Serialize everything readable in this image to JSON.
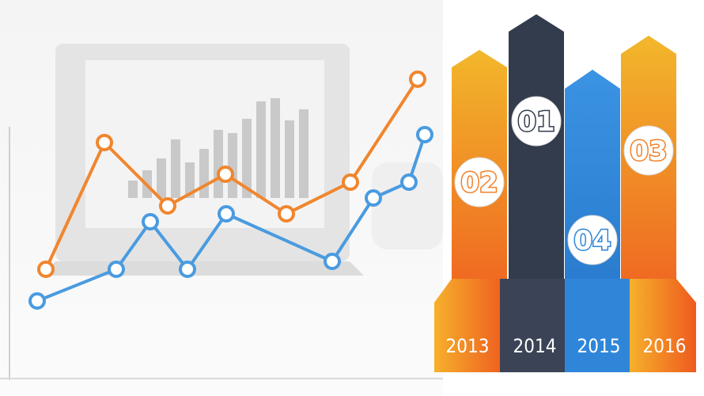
{
  "colors": {
    "orange_line": "#f0862e",
    "blue_line": "#4a9be0",
    "arrow_yellow": "#f2b72b",
    "arrow_orange": "#f0812a",
    "arrow_navy": "#333c4d",
    "arrow_blue": "#2f86d9"
  },
  "chart_data": [
    {
      "type": "line",
      "series": [
        {
          "name": "",
          "values": [
            2.0,
            3.6,
            2.8,
            3.2,
            2.7,
            3.1,
            4.4
          ],
          "color": "#f0862e"
        },
        {
          "name": "",
          "values": [
            1.6,
            2.0,
            2.6,
            2.0,
            2.7,
            2.1,
            2.9,
            3.1,
            3.7
          ],
          "color": "#4a9be0"
        }
      ]
    },
    {
      "type": "bar",
      "categories": [
        "2013",
        "2014",
        "2015",
        "2016"
      ],
      "badges": [
        "02",
        "01",
        "04",
        "03"
      ],
      "values": [
        3,
        4,
        2,
        3
      ]
    }
  ]
}
